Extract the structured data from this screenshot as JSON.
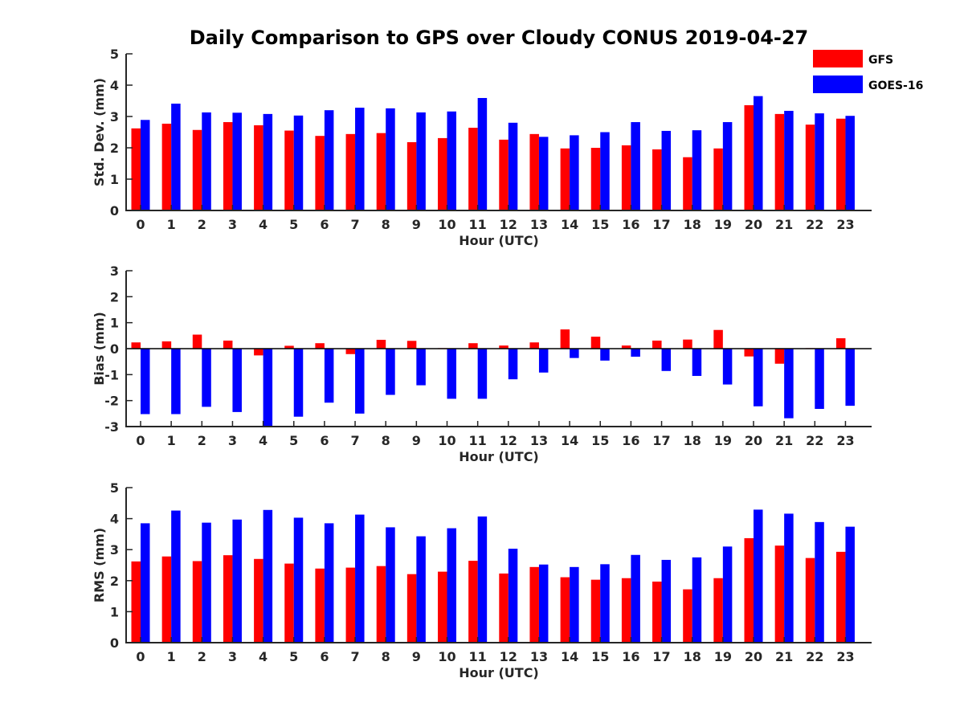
{
  "title": "Daily Comparison to GPS over Cloudy CONUS 2019-04-27",
  "colors": {
    "GFS": "#ff0000",
    "GOES-16": "#0000ff"
  },
  "legend": {
    "placement": "top-right",
    "entries": [
      "GFS",
      "GOES-16"
    ]
  },
  "chart_data": [
    {
      "type": "bar",
      "ylabel": "Std. Dev. (mm)",
      "xlabel": "Hour (UTC)",
      "ylim": [
        0,
        5
      ],
      "yticks": [
        0,
        1,
        2,
        3,
        4,
        5
      ],
      "categories": [
        "0",
        "1",
        "2",
        "3",
        "4",
        "5",
        "6",
        "7",
        "8",
        "9",
        "10",
        "11",
        "12",
        "13",
        "14",
        "15",
        "16",
        "17",
        "18",
        "19",
        "20",
        "21",
        "22",
        "23"
      ],
      "series": [
        {
          "name": "GFS",
          "values": [
            2.62,
            2.77,
            2.57,
            2.82,
            2.72,
            2.55,
            2.38,
            2.44,
            2.47,
            2.18,
            2.31,
            2.64,
            2.26,
            2.44,
            1.98,
            2.0,
            2.08,
            1.95,
            1.7,
            1.98,
            3.36,
            3.08,
            2.74,
            2.93
          ]
        },
        {
          "name": "GOES-16",
          "values": [
            2.89,
            3.41,
            3.13,
            3.12,
            3.08,
            3.03,
            3.2,
            3.28,
            3.26,
            3.13,
            3.16,
            3.59,
            2.8,
            2.35,
            2.4,
            2.5,
            2.82,
            2.54,
            2.56,
            2.82,
            3.65,
            3.18,
            3.1,
            3.02
          ]
        }
      ]
    },
    {
      "type": "bar",
      "ylabel": "Bias (mm)",
      "xlabel": "Hour (UTC)",
      "ylim": [
        -3,
        3
      ],
      "yticks": [
        -3,
        -2,
        -1,
        0,
        1,
        2,
        3
      ],
      "categories": [
        "0",
        "1",
        "2",
        "3",
        "4",
        "5",
        "6",
        "7",
        "8",
        "9",
        "10",
        "11",
        "12",
        "13",
        "14",
        "15",
        "16",
        "17",
        "18",
        "19",
        "20",
        "21",
        "22",
        "23"
      ],
      "series": [
        {
          "name": "GFS",
          "values": [
            0.24,
            0.28,
            0.54,
            0.31,
            -0.26,
            0.11,
            0.21,
            -0.21,
            0.34,
            0.3,
            0.02,
            0.21,
            0.12,
            0.24,
            0.74,
            0.46,
            0.12,
            0.31,
            0.35,
            0.72,
            -0.3,
            -0.58,
            0.02,
            0.4
          ]
        },
        {
          "name": "GOES-16",
          "values": [
            -2.52,
            -2.52,
            -2.24,
            -2.44,
            -2.98,
            -2.62,
            -2.08,
            -2.5,
            -1.78,
            -1.41,
            -1.93,
            -1.93,
            -1.18,
            -0.92,
            -0.36,
            -0.46,
            -0.31,
            -0.86,
            -1.05,
            -1.38,
            -2.22,
            -2.68,
            -2.32,
            -2.2
          ]
        }
      ]
    },
    {
      "type": "bar",
      "ylabel": "RMS (mm)",
      "xlabel": "Hour (UTC)",
      "ylim": [
        0,
        5
      ],
      "yticks": [
        0,
        1,
        2,
        3,
        4,
        5
      ],
      "categories": [
        "0",
        "1",
        "2",
        "3",
        "4",
        "5",
        "6",
        "7",
        "8",
        "9",
        "10",
        "11",
        "12",
        "13",
        "14",
        "15",
        "16",
        "17",
        "18",
        "19",
        "20",
        "21",
        "22",
        "23"
      ],
      "series": [
        {
          "name": "GFS",
          "values": [
            2.62,
            2.78,
            2.63,
            2.82,
            2.7,
            2.55,
            2.39,
            2.42,
            2.47,
            2.21,
            2.29,
            2.64,
            2.23,
            2.44,
            2.11,
            2.03,
            2.08,
            1.97,
            1.72,
            2.08,
            3.37,
            3.13,
            2.73,
            2.93
          ]
        },
        {
          "name": "GOES-16",
          "values": [
            3.85,
            4.26,
            3.87,
            3.97,
            4.28,
            4.03,
            3.85,
            4.13,
            3.72,
            3.43,
            3.69,
            4.07,
            3.03,
            2.52,
            2.44,
            2.53,
            2.83,
            2.67,
            2.75,
            3.1,
            4.29,
            4.16,
            3.89,
            3.74
          ]
        }
      ]
    }
  ]
}
